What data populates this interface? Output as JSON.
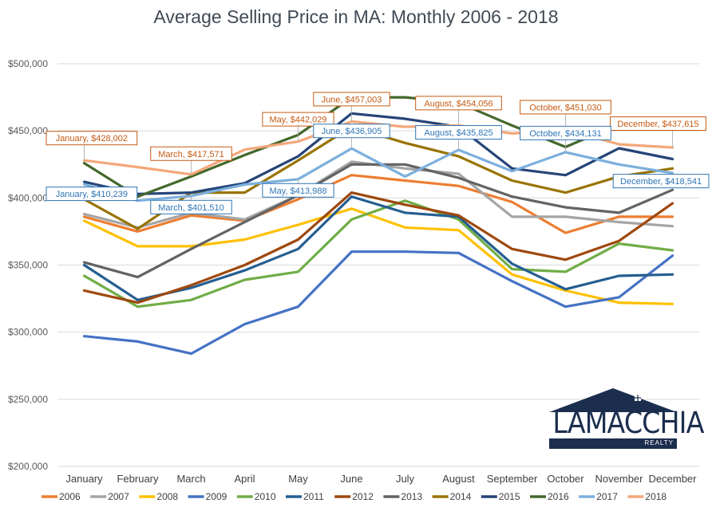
{
  "chart_data": {
    "type": "line",
    "title": "Average Selling Price in MA: Monthly 2006 - 2018",
    "categories": [
      "January",
      "February",
      "March",
      "April",
      "May",
      "June",
      "July",
      "August",
      "September",
      "October",
      "November",
      "December"
    ],
    "y_ticks": [
      "$200,000",
      "$250,000",
      "$300,000",
      "$350,000",
      "$400,000",
      "$450,000",
      "$500,000"
    ],
    "ylim": [
      200000,
      500000
    ],
    "grid": "horizontal",
    "legend_position": "bottom",
    "series": [
      {
        "name": "2006",
        "color": "#ED7D31",
        "values": [
          386000,
          375000,
          387000,
          383000,
          399000,
          417000,
          413000,
          409000,
          397000,
          374000,
          386000,
          386000
        ]
      },
      {
        "name": "2007",
        "color": "#A5A5A5",
        "values": [
          388000,
          378000,
          389000,
          384000,
          402000,
          427000,
          422000,
          418000,
          386000,
          386000,
          382000,
          379000
        ]
      },
      {
        "name": "2008",
        "color": "#FFC000",
        "values": [
          383000,
          364000,
          364000,
          369000,
          380000,
          392000,
          378000,
          376000,
          343000,
          331000,
          322000,
          321000
        ]
      },
      {
        "name": "2009",
        "color": "#4472C4",
        "values": [
          297000,
          293000,
          284000,
          306000,
          319000,
          360000,
          360000,
          359000,
          338000,
          319000,
          326000,
          357000
        ]
      },
      {
        "name": "2010",
        "color": "#70AD47",
        "values": [
          342000,
          319000,
          324000,
          339000,
          345000,
          384000,
          398000,
          384000,
          347000,
          345000,
          366000,
          361000
        ]
      },
      {
        "name": "2011",
        "color": "#255E91",
        "values": [
          350000,
          324000,
          333000,
          346000,
          362000,
          401000,
          389000,
          386000,
          351000,
          332000,
          342000,
          343000
        ]
      },
      {
        "name": "2012",
        "color": "#9E480E",
        "values": [
          331000,
          322000,
          335000,
          350000,
          369000,
          404000,
          395000,
          387000,
          362000,
          354000,
          368000,
          396000
        ]
      },
      {
        "name": "2013",
        "color": "#636363",
        "values": [
          352000,
          341000,
          362000,
          382000,
          402000,
          425000,
          425000,
          415000,
          401000,
          393000,
          389000,
          406000
        ]
      },
      {
        "name": "2014",
        "color": "#997300",
        "values": [
          399000,
          377000,
          404000,
          404000,
          428000,
          453000,
          441000,
          431000,
          413000,
          404000,
          416000,
          422000
        ]
      },
      {
        "name": "2015",
        "color": "#264478",
        "values": [
          412000,
          403000,
          404000,
          411000,
          431000,
          463000,
          459000,
          453000,
          422000,
          417000,
          437000,
          429000
        ]
      },
      {
        "name": "2016",
        "color": "#43682B",
        "values": [
          426000,
          401000,
          416000,
          432000,
          447000,
          475000,
          475000,
          471000,
          454000,
          438000,
          455000,
          451000
        ]
      },
      {
        "name": "2017",
        "color": "#7CAFDD",
        "values": [
          410239,
          398000,
          401510,
          410000,
          413988,
          436905,
          416000,
          435825,
          420000,
          434131,
          425000,
          418541
        ]
      },
      {
        "name": "2018",
        "color": "#F4A77A",
        "values": [
          428002,
          423000,
          417571,
          436000,
          442029,
          457003,
          453000,
          454056,
          448000,
          451030,
          440000,
          437615
        ]
      }
    ],
    "annotations": [
      {
        "text": "January, $428,002",
        "series": "2018",
        "index": 0
      },
      {
        "text": "March, $417,571",
        "series": "2018",
        "index": 2
      },
      {
        "text": "May, $442,029",
        "series": "2018",
        "index": 4
      },
      {
        "text": "June, $457,003",
        "series": "2018",
        "index": 5
      },
      {
        "text": "August, $454,056",
        "series": "2018",
        "index": 7
      },
      {
        "text": "October, $451,030",
        "series": "2018",
        "index": 9
      },
      {
        "text": "December, $437,615",
        "series": "2018",
        "index": 11
      },
      {
        "text": "January, $410,239",
        "series": "2017",
        "index": 0
      },
      {
        "text": "March, $401,510",
        "series": "2017",
        "index": 2
      },
      {
        "text": "May, $413,988",
        "series": "2017",
        "index": 4
      },
      {
        "text": "June, $436,905",
        "series": "2017",
        "index": 5
      },
      {
        "text": "August, $435,825",
        "series": "2017",
        "index": 7
      },
      {
        "text": "October, $434,131",
        "series": "2017",
        "index": 9
      },
      {
        "text": "December, $418,541",
        "series": "2017",
        "index": 11
      }
    ]
  },
  "logo": {
    "name": "LAMACCHIA",
    "sub": "REALTY",
    "color": "#1c2e4e"
  }
}
